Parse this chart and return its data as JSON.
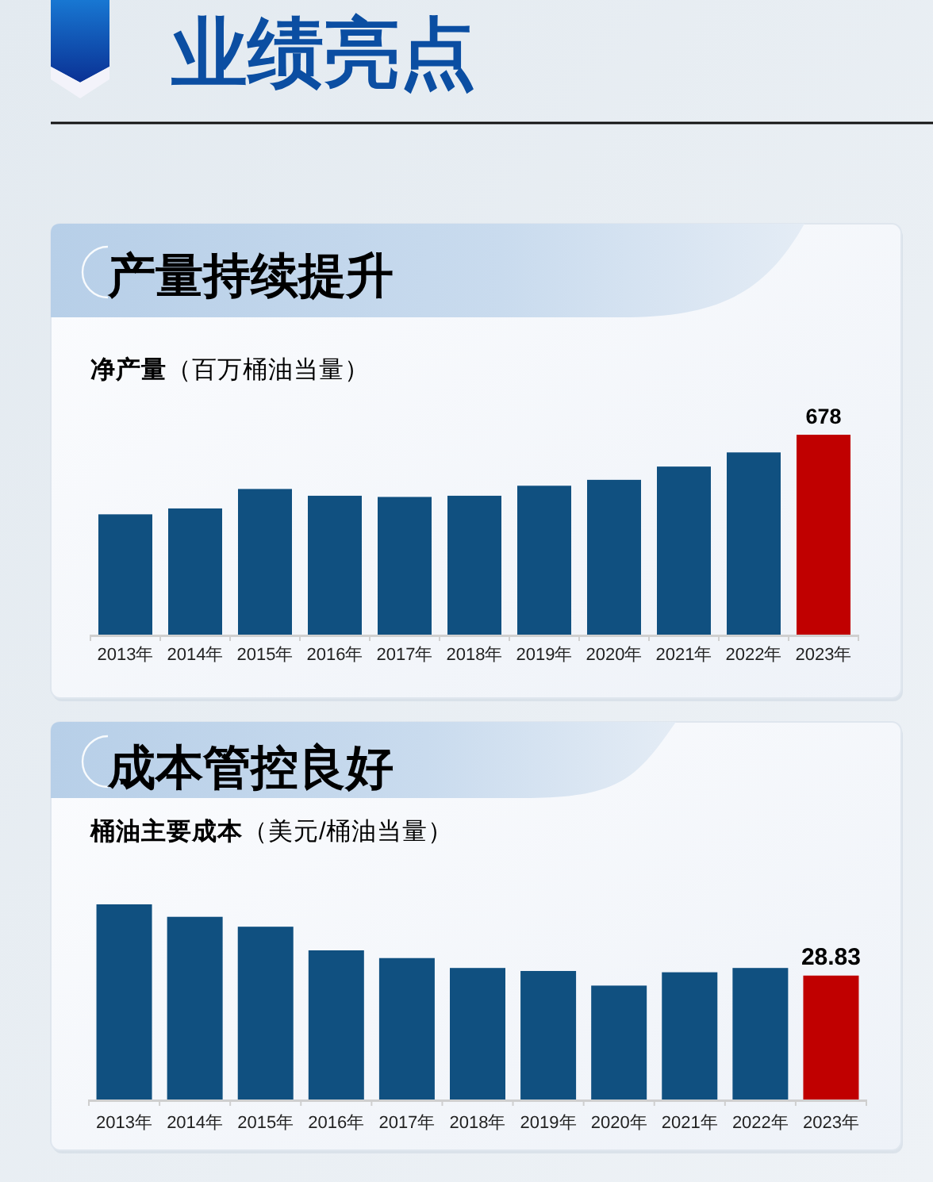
{
  "chart_data": [
    {
      "type": "other",
      "title": "业绩亮点"
    },
    {
      "type": "bar",
      "title": "产量持续提升",
      "subtitle": "净产量（百万桶油当量）",
      "categories": [
        "2013年",
        "2014年",
        "2015年",
        "2016年",
        "2017年",
        "2018年",
        "2019年",
        "2020年",
        "2021年",
        "2022年",
        "2023年"
      ],
      "values": [
        408,
        428,
        494,
        471,
        467,
        471,
        505,
        525,
        570,
        618,
        678
      ],
      "colors": [
        "#105080",
        "#105080",
        "#105080",
        "#105080",
        "#105080",
        "#105080",
        "#105080",
        "#105080",
        "#105080",
        "#105080",
        "#c00000"
      ],
      "value_labels": [
        null,
        null,
        null,
        null,
        null,
        null,
        null,
        null,
        null,
        null,
        "678"
      ]
    },
    {
      "type": "bar",
      "title": "成本管控良好",
      "subtitle": "桶油主要成本（美元/桶油当量）",
      "categories": [
        "2013年",
        "2014年",
        "2015年",
        "2016年",
        "2017年",
        "2018年",
        "2019年",
        "2020年",
        "2021年",
        "2022年",
        "2023年"
      ],
      "values": [
        45.4,
        42.5,
        40.2,
        34.7,
        32.9,
        30.6,
        29.9,
        26.5,
        29.6,
        30.6,
        28.83
      ],
      "colors": [
        "#105080",
        "#105080",
        "#105080",
        "#105080",
        "#105080",
        "#105080",
        "#105080",
        "#105080",
        "#105080",
        "#105080",
        "#c00000"
      ],
      "value_labels": [
        null,
        null,
        null,
        null,
        null,
        null,
        null,
        null,
        null,
        null,
        "28.83"
      ]
    }
  ]
}
